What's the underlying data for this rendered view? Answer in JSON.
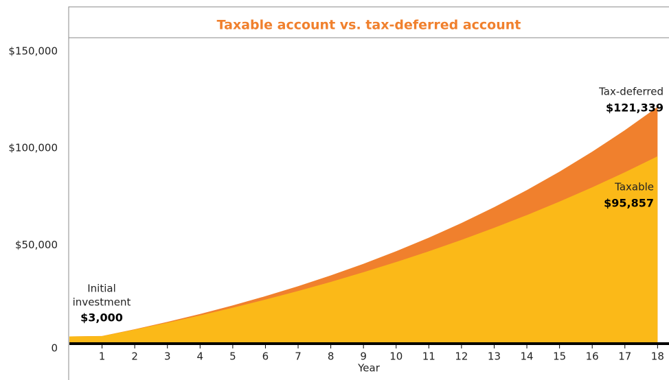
{
  "chart_data": {
    "type": "area",
    "title": "Taxable account vs. tax-deferred account",
    "x_label": "Year",
    "x": [
      0,
      1,
      2,
      3,
      4,
      5,
      6,
      7,
      8,
      9,
      10,
      11,
      12,
      13,
      14,
      15,
      16,
      17,
      18
    ],
    "xlim": [
      0,
      18.35
    ],
    "xticks": [
      1,
      2,
      3,
      4,
      5,
      6,
      7,
      8,
      9,
      10,
      11,
      12,
      13,
      14,
      15,
      16,
      17,
      18
    ],
    "ylim": [
      0,
      151000
    ],
    "yticks": [
      0,
      {
        "value": 50000,
        "label": "$50,000"
      },
      {
        "value": 100000,
        "label": "$100,000"
      },
      {
        "value": 150000,
        "label": "$150,000"
      }
    ],
    "series": [
      {
        "name": "Tax-deferred",
        "color": "#f0802d",
        "end_label": "$121,339",
        "values": [
          3000,
          3240,
          6739,
          10518,
          14600,
          19008,
          23768,
          28910,
          34463,
          40460,
          46936,
          53931,
          61486,
          69644,
          78456,
          87973,
          98250,
          109350,
          121339
        ]
      },
      {
        "name": "Taxable",
        "color": "#fbb918",
        "end_label": "$95,857",
        "values": [
          3000,
          3173,
          6528,
          10077,
          13831,
          17800,
          21998,
          26438,
          31134,
          36101,
          41353,
          46908,
          52784,
          58997,
          65569,
          72519,
          79869,
          87643,
          95857
        ]
      }
    ],
    "start_annotation": {
      "text": [
        "Initial",
        "investment"
      ],
      "value_label": "$3,000"
    }
  }
}
